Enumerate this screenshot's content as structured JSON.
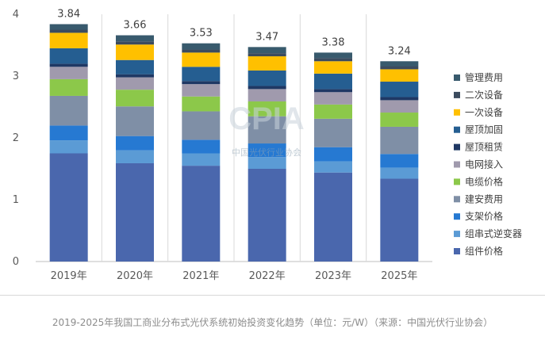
{
  "chart_data": {
    "type": "bar",
    "stacked": true,
    "categories": [
      "2019年",
      "2020年",
      "2021年",
      "2022年",
      "2023年",
      "2025年"
    ],
    "totals": [
      "3.84",
      "3.66",
      "3.53",
      "3.47",
      "3.38",
      "3.24"
    ],
    "ylim": [
      0,
      4
    ],
    "yticks": [
      "0",
      "1",
      "2",
      "3",
      "4"
    ],
    "grid": false,
    "legend_position": "right",
    "series": [
      {
        "name": "组件价格",
        "color": "#4a67ad",
        "values": [
          1.75,
          1.59,
          1.55,
          1.5,
          1.44,
          1.34
        ]
      },
      {
        "name": "组串式逆变器",
        "color": "#5b9bd5",
        "values": [
          0.21,
          0.21,
          0.2,
          0.19,
          0.18,
          0.18
        ]
      },
      {
        "name": "支架价格",
        "color": "#2679d2",
        "values": [
          0.24,
          0.23,
          0.22,
          0.22,
          0.23,
          0.22
        ]
      },
      {
        "name": "建安费用",
        "color": "#7f8fa6",
        "values": [
          0.48,
          0.48,
          0.46,
          0.44,
          0.46,
          0.44
        ]
      },
      {
        "name": "电缆价格",
        "color": "#8cc84a",
        "values": [
          0.27,
          0.27,
          0.24,
          0.24,
          0.23,
          0.23
        ]
      },
      {
        "name": "电网接入",
        "color": "#a09aad",
        "values": [
          0.2,
          0.2,
          0.2,
          0.2,
          0.2,
          0.2
        ]
      },
      {
        "name": "屋顶租赁",
        "color": "#1f3864",
        "values": [
          0.05,
          0.05,
          0.05,
          0.05,
          0.05,
          0.05
        ]
      },
      {
        "name": "屋顶加固",
        "color": "#255e91",
        "values": [
          0.25,
          0.23,
          0.23,
          0.25,
          0.25,
          0.25
        ]
      },
      {
        "name": "一次设备",
        "color": "#ffc000",
        "values": [
          0.25,
          0.25,
          0.23,
          0.23,
          0.2,
          0.2
        ]
      },
      {
        "name": "二次设备",
        "color": "#3b4b5e",
        "values": [
          0.05,
          0.05,
          0.05,
          0.05,
          0.05,
          0.05
        ]
      },
      {
        "name": "管理费用",
        "color": "#385a6d",
        "values": [
          0.09,
          0.1,
          0.1,
          0.1,
          0.09,
          0.08
        ]
      }
    ]
  },
  "watermark": {
    "text": "中国光伏行业协会"
  },
  "caption": "2019-2025年我国工商业分布式光伏系统初始投资变化趋势（单位：元/W）（来源：中国光伏行业协会）"
}
